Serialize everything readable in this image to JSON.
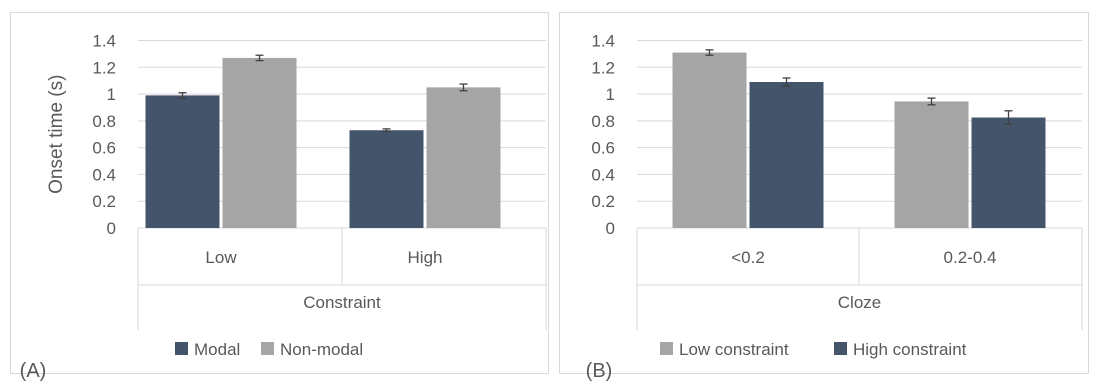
{
  "colors": {
    "dark": "#44546a",
    "gray": "#a5a5a5",
    "grid": "#d9d9d9",
    "axis_text": "#595959",
    "panel_border": "#d9d9d9"
  },
  "chart_data": [
    {
      "type": "bar",
      "panel_label": "(A)",
      "ylabel": "Onset time (s)",
      "xlabel": "Constraint",
      "categories": [
        "Low",
        "High"
      ],
      "ylim": [
        0,
        1.4
      ],
      "yticks": [
        "0",
        "0.2",
        "0.4",
        "0.6",
        "0.8",
        "1",
        "1.2",
        "1.4"
      ],
      "grid": true,
      "legend_position": "bottom",
      "series": [
        {
          "name": "Modal",
          "color": "#44546a",
          "values": [
            0.99,
            0.73
          ],
          "errors": [
            0.02,
            0.01
          ]
        },
        {
          "name": "Non-modal",
          "color": "#a5a5a5",
          "values": [
            1.27,
            1.05
          ],
          "errors": [
            0.02,
            0.025
          ]
        }
      ]
    },
    {
      "type": "bar",
      "panel_label": "(B)",
      "ylabel": "",
      "xlabel": "Cloze",
      "categories": [
        "<0.2",
        "0.2-0.4"
      ],
      "ylim": [
        0,
        1.4
      ],
      "yticks": [
        "0",
        "0.2",
        "0.4",
        "0.6",
        "0.8",
        "1",
        "1.2",
        "1.4"
      ],
      "grid": true,
      "legend_position": "bottom",
      "series": [
        {
          "name": "Low constraint",
          "color": "#a5a5a5",
          "values": [
            1.31,
            0.945
          ],
          "errors": [
            0.02,
            0.025
          ]
        },
        {
          "name": "High constraint",
          "color": "#44546a",
          "values": [
            1.09,
            0.825
          ],
          "errors": [
            0.03,
            0.05
          ]
        }
      ]
    }
  ]
}
